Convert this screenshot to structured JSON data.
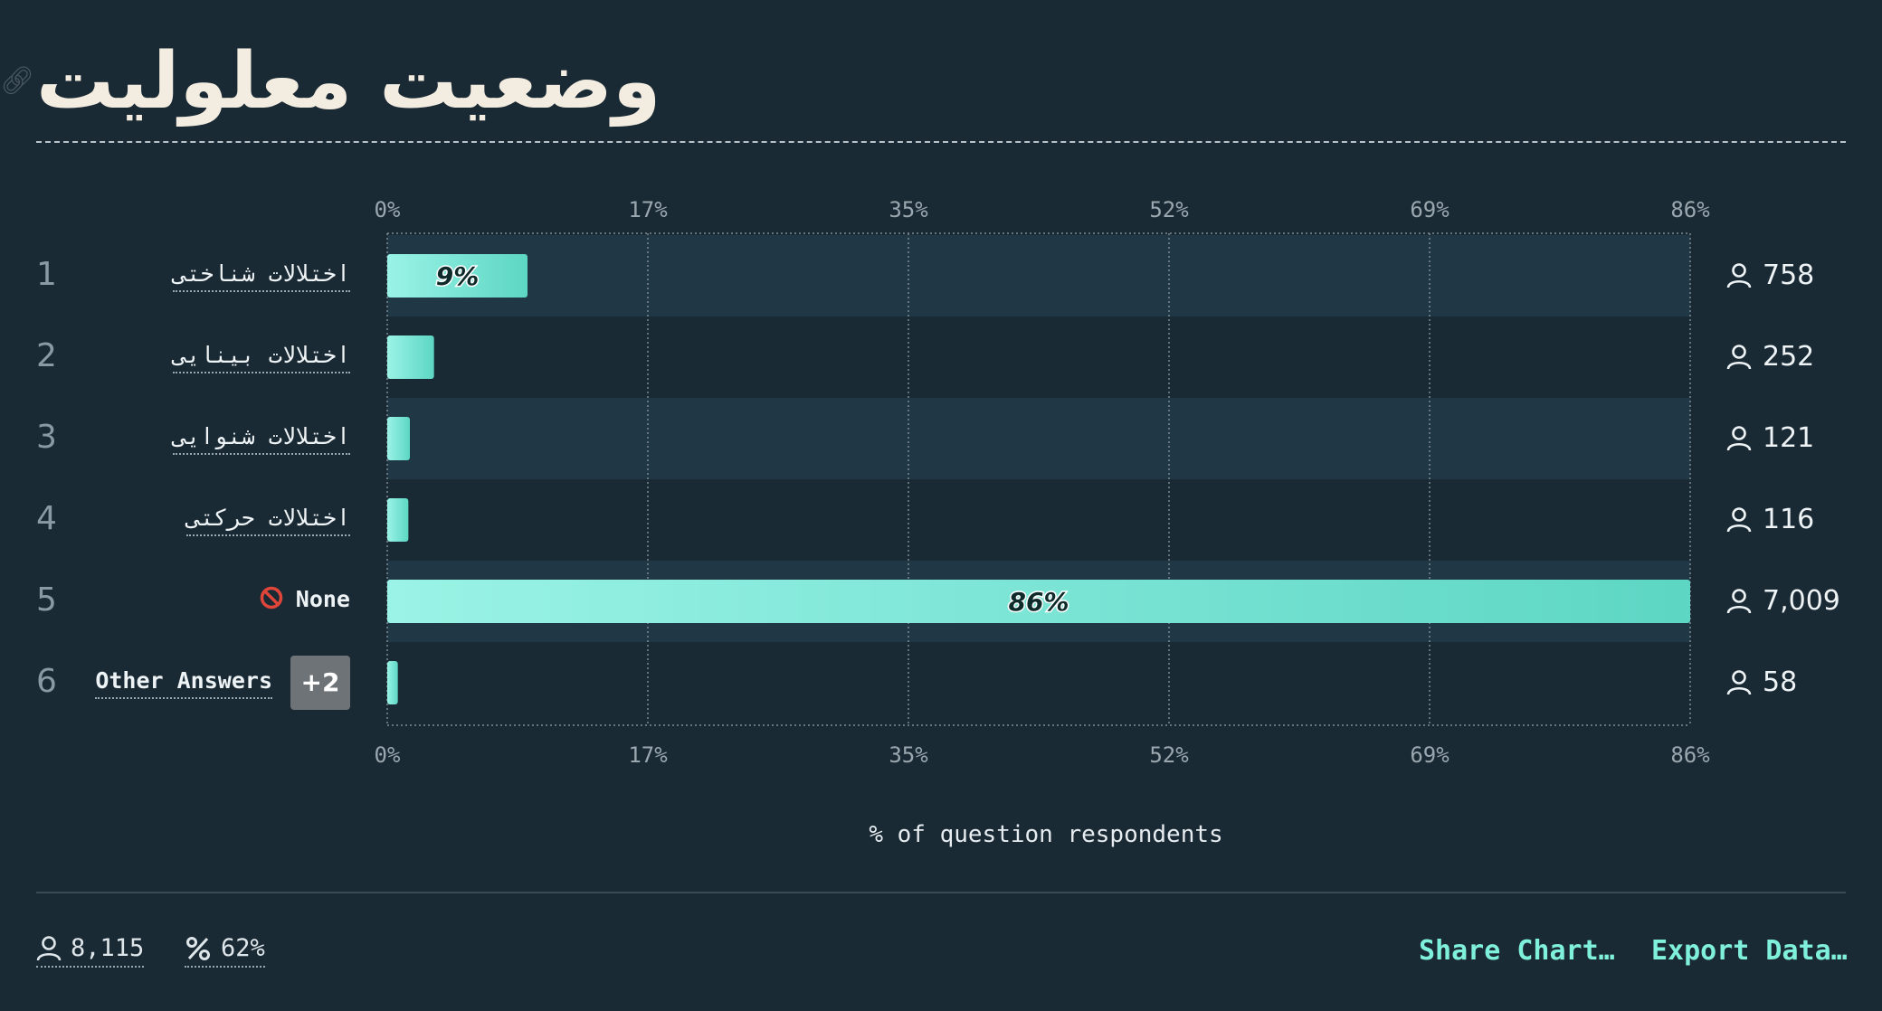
{
  "title": "وضعیت معلولیت",
  "chart_data": {
    "type": "bar",
    "orientation": "horizontal",
    "ticks": [
      "0%",
      "17%",
      "35%",
      "52%",
      "69%",
      "86%"
    ],
    "xlim": [
      0,
      86.4
    ],
    "xlabel": "% of question respondents",
    "categories": [
      "اختلالات شناختی",
      "اختلالات بینایی",
      "اختلالات شنوایی",
      "اختلالات حرکتی",
      "None",
      "Other Answers"
    ],
    "values": [
      9.3,
      3.1,
      1.5,
      1.4,
      86.4,
      0.7
    ],
    "counts": [
      "758",
      "252",
      "121",
      "116",
      "7,009",
      "58"
    ],
    "bar_labels": [
      "9%",
      "",
      "",
      "",
      "86%",
      ""
    ]
  },
  "rows": [
    {
      "num": "1",
      "label": "اختلالات شناختی",
      "count": "758"
    },
    {
      "num": "2",
      "label": "اختلالات بینایی",
      "count": "252"
    },
    {
      "num": "3",
      "label": "اختلالات شنوایی",
      "count": "121"
    },
    {
      "num": "4",
      "label": "اختلالات حرکتی",
      "count": "116"
    },
    {
      "num": "5",
      "label": "None",
      "count": "7,009"
    },
    {
      "num": "6",
      "label": "Other Answers",
      "count": "58",
      "badge": "+2"
    }
  ],
  "footer": {
    "respondents": "8,115",
    "percent": "62%",
    "share": "Share Chart…",
    "export": "Export Data…"
  },
  "colors": {
    "background": "#1a2a35",
    "row_band": "#203746",
    "bar_start": "#9af3e6",
    "bar_end": "#5dd6c4",
    "action": "#7ff0dc"
  },
  "icons": {
    "count": "person-icon",
    "none": "no-entry-icon",
    "percent": "percent-icon",
    "title": "link-icon"
  }
}
